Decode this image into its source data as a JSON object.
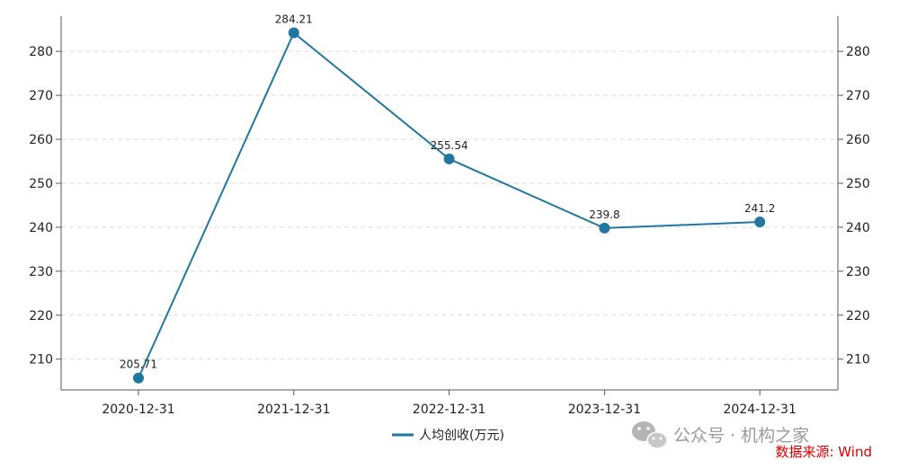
{
  "chart_data": {
    "type": "line",
    "categories": [
      "2020-12-31",
      "2021-12-31",
      "2022-12-31",
      "2023-12-31",
      "2024-12-31"
    ],
    "series": [
      {
        "name": "人均创收(万元)",
        "values": [
          205.71,
          284.21,
          255.54,
          239.8,
          241.2
        ]
      }
    ],
    "data_labels": [
      "205.71",
      "284.21",
      "255.54",
      "239.8",
      "241.2"
    ],
    "y_ticks": [
      210,
      220,
      230,
      240,
      250,
      260,
      270,
      280
    ],
    "ylim": [
      203,
      288
    ],
    "grid": true,
    "legend_position": "bottom-center",
    "colors": {
      "line": "#2277a0",
      "grid": "#d9d9d9",
      "axis": "#555555",
      "source": "#d40000"
    }
  },
  "watermark": {
    "text": "公众号 · 机构之家",
    "icon": "wechat-icon"
  },
  "source": {
    "text": "数据来源: Wind"
  }
}
